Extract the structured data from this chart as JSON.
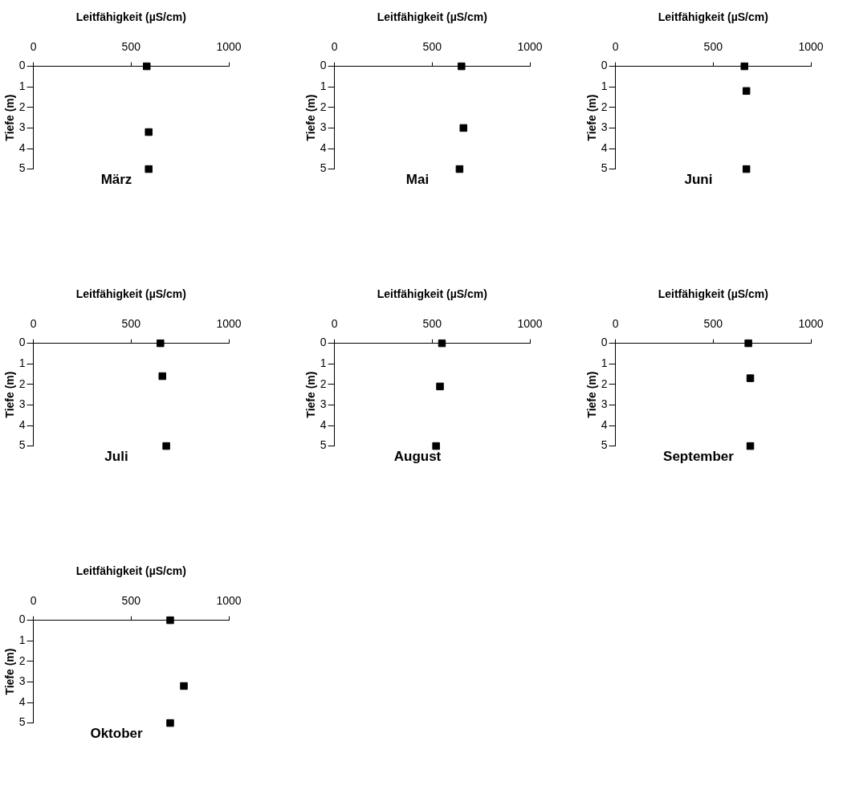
{
  "chart_data": [
    {
      "type": "scatter",
      "title": "März",
      "xlabel": "Leitfähigkeit (µS/cm)",
      "ylabel": "Tiefe (m)",
      "x": [
        580,
        590,
        590
      ],
      "values": [
        0,
        3.2,
        5
      ],
      "color": "#000000",
      "marker": "square",
      "xlim": [
        0,
        1000
      ],
      "xticks": [
        0,
        500,
        1000
      ],
      "ylim": [
        5,
        0
      ],
      "yticks": [
        0,
        1,
        2,
        3,
        4,
        5
      ],
      "grid": false
    },
    {
      "type": "scatter",
      "title": "Mai",
      "xlabel": "Leitfähigkeit (µS/cm)",
      "ylabel": "Tiefe (m)",
      "x": [
        650,
        660,
        640
      ],
      "values": [
        0,
        3,
        5
      ],
      "color": "#000000",
      "marker": "square",
      "xlim": [
        0,
        1000
      ],
      "xticks": [
        0,
        500,
        1000
      ],
      "ylim": [
        5,
        0
      ],
      "yticks": [
        0,
        1,
        2,
        3,
        4,
        5
      ],
      "grid": false
    },
    {
      "type": "scatter",
      "title": "Juni",
      "xlabel": "Leitfähigkeit (µS/cm)",
      "ylabel": "Tiefe (m)",
      "x": [
        660,
        670,
        670
      ],
      "values": [
        0,
        1.2,
        5
      ],
      "color": "#000000",
      "marker": "square",
      "xlim": [
        0,
        1000
      ],
      "xticks": [
        0,
        500,
        1000
      ],
      "ylim": [
        5,
        0
      ],
      "yticks": [
        0,
        1,
        2,
        3,
        4,
        5
      ],
      "grid": false
    },
    {
      "type": "scatter",
      "title": "Juli",
      "xlabel": "Leitfähigkeit (µS/cm)",
      "ylabel": "Tiefe (m)",
      "x": [
        650,
        660,
        680
      ],
      "values": [
        0,
        1.6,
        5
      ],
      "color": "#000000",
      "marker": "square",
      "xlim": [
        0,
        1000
      ],
      "xticks": [
        0,
        500,
        1000
      ],
      "ylim": [
        5,
        0
      ],
      "yticks": [
        0,
        1,
        2,
        3,
        4,
        5
      ],
      "grid": false
    },
    {
      "type": "scatter",
      "title": "August",
      "xlabel": "Leitfähigkeit (µS/cm)",
      "ylabel": "Tiefe (m)",
      "x": [
        550,
        540,
        520
      ],
      "values": [
        0,
        2.1,
        5
      ],
      "color": "#000000",
      "marker": "square",
      "xlim": [
        0,
        1000
      ],
      "xticks": [
        0,
        500,
        1000
      ],
      "ylim": [
        5,
        0
      ],
      "yticks": [
        0,
        1,
        2,
        3,
        4,
        5
      ],
      "grid": false
    },
    {
      "type": "scatter",
      "title": "September",
      "xlabel": "Leitfähigkeit (µS/cm)",
      "ylabel": "Tiefe (m)",
      "x": [
        680,
        690,
        690
      ],
      "values": [
        0,
        1.7,
        5
      ],
      "color": "#000000",
      "marker": "square",
      "xlim": [
        0,
        1000
      ],
      "xticks": [
        0,
        500,
        1000
      ],
      "ylim": [
        5,
        0
      ],
      "yticks": [
        0,
        1,
        2,
        3,
        4,
        5
      ],
      "grid": false
    },
    {
      "type": "scatter",
      "title": "Oktober",
      "xlabel": "Leitfähigkeit (µS/cm)",
      "ylabel": "Tiefe (m)",
      "x": [
        700,
        770,
        700
      ],
      "values": [
        0,
        3.2,
        5
      ],
      "color": "#000000",
      "marker": "square",
      "xlim": [
        0,
        1000
      ],
      "xticks": [
        0,
        500,
        1000
      ],
      "ylim": [
        5,
        0
      ],
      "yticks": [
        0,
        1,
        2,
        3,
        4,
        5
      ],
      "grid": false
    }
  ]
}
